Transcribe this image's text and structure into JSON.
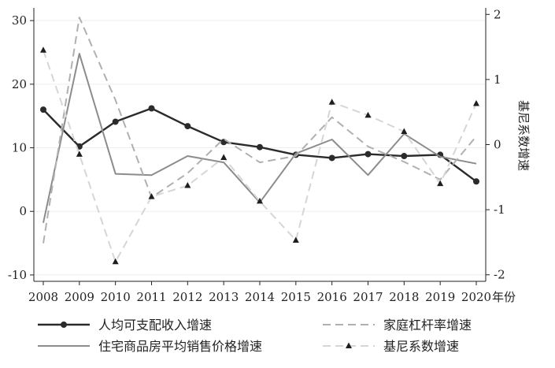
{
  "chart_data": {
    "type": "line",
    "title": "",
    "x": [
      2008,
      2009,
      2010,
      2011,
      2012,
      2013,
      2014,
      2015,
      2016,
      2017,
      2018,
      2019,
      2020
    ],
    "xlabel": "年份",
    "ylabel": "",
    "ylim": [
      -11,
      32
    ],
    "yticks": [
      -10,
      0,
      10,
      20,
      30
    ],
    "y2label": "基尼系数增速",
    "y2lim": [
      -2.1,
      2.1
    ],
    "y2ticks": [
      -2,
      -1,
      0,
      1,
      2
    ],
    "grid": true,
    "legend": "bottom",
    "series": [
      {
        "name": "人均可支配收入增速",
        "axis": "left",
        "color": "#2b2b2b",
        "style": "solid-marker-circle",
        "values": [
          16,
          10.2,
          14.1,
          16.2,
          13.4,
          10.9,
          10.1,
          8.9,
          8.4,
          9.0,
          8.7,
          8.9,
          4.7
        ]
      },
      {
        "name": "住宅商品房平均销售价格增速",
        "axis": "left",
        "color": "#8c8c8c",
        "style": "solid",
        "values": [
          -1.8,
          24.8,
          5.9,
          5.7,
          8.7,
          7.7,
          1.4,
          9.1,
          11.3,
          5.7,
          12.2,
          8.6,
          7.5
        ]
      },
      {
        "name": "家庭杠杆率增速",
        "axis": "left",
        "color": "#b0b0b0",
        "style": "dashed",
        "values": [
          -5.0,
          30.5,
          17.5,
          2.2,
          6.0,
          11.4,
          7.7,
          8.7,
          14.8,
          10.2,
          7.8,
          5.0,
          11.8
        ]
      },
      {
        "name": "基尼系数增速",
        "axis": "right",
        "color": "#d6d6d6",
        "style": "dashed-marker-triangle",
        "values": [
          1.45,
          -0.15,
          -1.8,
          -0.8,
          -0.63,
          -0.2,
          -0.87,
          -1.47,
          0.65,
          0.45,
          0.2,
          -0.6,
          0.63
        ]
      }
    ]
  }
}
